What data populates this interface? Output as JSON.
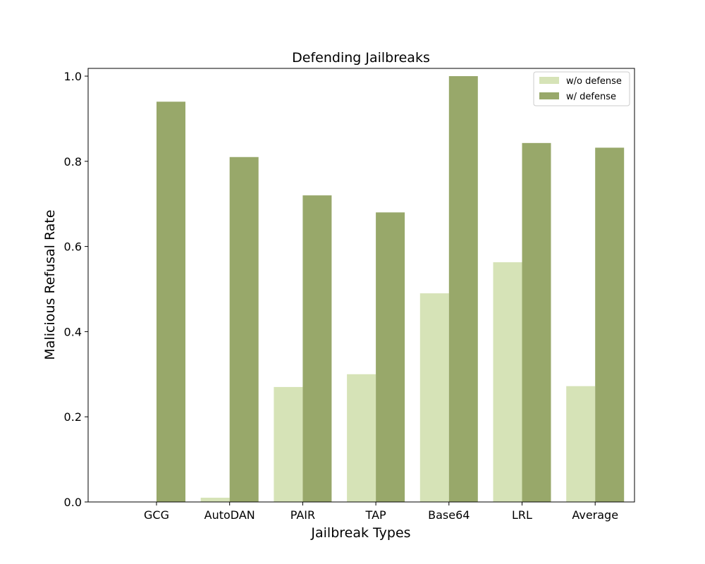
{
  "chart_data": {
    "type": "bar",
    "title": "Defending Jailbreaks",
    "xlabel": "Jailbreak Types",
    "ylabel": "Malicious Refusal Rate",
    "categories": [
      "GCG",
      "AutoDAN",
      "PAIR",
      "TAP",
      "Base64",
      "LRL",
      "Average"
    ],
    "series": [
      {
        "name": "w/o defense",
        "color": "#d6e3b7",
        "values": [
          0.0,
          0.01,
          0.27,
          0.3,
          0.49,
          0.563,
          0.272
        ]
      },
      {
        "name": "w/ defense",
        "color": "#98a86a",
        "values": [
          0.94,
          0.81,
          0.72,
          0.68,
          1.0,
          0.843,
          0.832
        ]
      }
    ],
    "ylim": [
      0,
      1.0
    ],
    "yticks": [
      "0.0",
      "0.2",
      "0.4",
      "0.6",
      "0.8",
      "1.0"
    ],
    "ytick_values": [
      0.0,
      0.2,
      0.4,
      0.6,
      0.8,
      1.0
    ],
    "legend_position": "top-right",
    "grid": false
  }
}
